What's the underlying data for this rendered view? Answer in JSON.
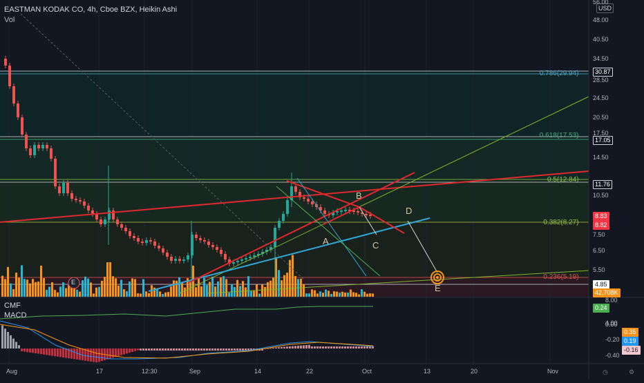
{
  "header": {
    "title": "EASTMAN KODAK CO, 4h, Cboe BZX, Heikin Ashi",
    "volume_label": "Vol",
    "currency": "USD"
  },
  "indicators": {
    "cmf_label": "CMF",
    "macd_label": "MACD"
  },
  "chart_data": {
    "type": "candlestick",
    "y_ticks": [
      "56.00",
      "48.00",
      "40.50",
      "34.50",
      "28.50",
      "24.50",
      "20.50",
      "17.50",
      "14.50",
      "10.50",
      "7.50",
      "6.50",
      "5.50"
    ],
    "x_ticks": [
      "Aug",
      "17",
      "12:30",
      "Sep",
      "14",
      "22",
      "Oct",
      "13",
      "20",
      "Nov"
    ],
    "price_labels": [
      {
        "text": "30.87",
        "color": "#ffffff",
        "bg": "#131722",
        "border": "#d1d4dc"
      },
      {
        "text": "17.05",
        "color": "#ffffff",
        "bg": "#131722",
        "border": "#d1d4dc"
      },
      {
        "text": "11.76",
        "color": "#ffffff",
        "bg": "#131722",
        "border": "#d1d4dc"
      },
      {
        "text": "8.83",
        "color": "#ffffff",
        "bg": "#f23645",
        "border": "#f23645"
      },
      {
        "text": "8.82",
        "color": "#ffffff",
        "bg": "#f23645",
        "border": "#f23645"
      },
      {
        "text": "4.85",
        "color": "#131722",
        "bg": "#ffffff",
        "border": "#ffffff"
      },
      {
        "text": "42.708K",
        "color": "#ffffff",
        "bg": "#f7931a",
        "border": "#f7931a"
      }
    ],
    "fib_levels": [
      {
        "text": "0.786(29.94)",
        "color": "#4fa3c7"
      },
      {
        "text": "0.618(17.53)",
        "color": "#4caf7d"
      },
      {
        "text": "0.5(12.84)",
        "color": "#8bc34a"
      },
      {
        "text": "0.382(8.27)",
        "color": "#a0c040"
      },
      {
        "text": "0.236(5.19)",
        "color": "#e05050"
      }
    ],
    "wave_labels": [
      "A",
      "B",
      "C",
      "D",
      "E"
    ],
    "event_marker": "E",
    "cmf": {
      "y_ticks": [
        "8.00",
        "0.00"
      ],
      "value_label": "0.24"
    },
    "macd": {
      "y_ticks": [
        "4.00",
        "0.00",
        "-0.20",
        "-0.40"
      ],
      "value_labels": [
        "0.35",
        "0.19",
        "-0.16"
      ]
    }
  },
  "colors": {
    "up": "#26a69a",
    "down": "#ef5350",
    "volume": "#f7931a",
    "volume_blue": "#26b6d6",
    "trend_red": "#e0282e",
    "trend_blue": "#2fa8d8",
    "trend_green": "#7fb62a"
  }
}
